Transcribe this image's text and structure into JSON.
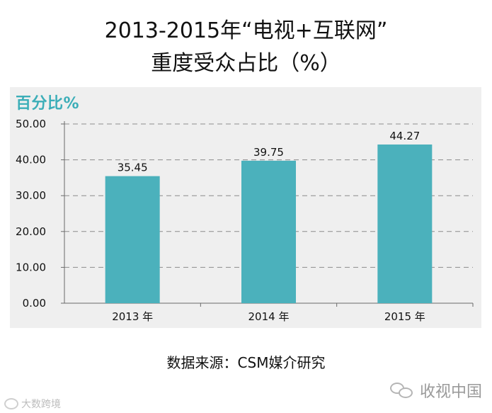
{
  "title": {
    "line1": "2013-2015年“电视+互联网”",
    "line2": "重度受众占比（%）"
  },
  "panel_label": "百分比%",
  "source": "数据来源：CSM媒介研究",
  "watermark_right": "收视中国",
  "watermark_left": "大数跨境",
  "colors": {
    "bar": "#4bb1bc",
    "panel_label": "#3caeb8",
    "panel_bg": "#efefef",
    "grid": "#8c8c8c",
    "axis": "#6a6a6a"
  },
  "chart_data": {
    "type": "bar",
    "categories": [
      "2013 年",
      "2014 年",
      "2015 年"
    ],
    "values": [
      35.45,
      39.75,
      44.27
    ],
    "value_labels": [
      "35.45",
      "39.75",
      "44.27"
    ],
    "yticks": [
      "0.00",
      "10.00",
      "20.00",
      "30.00",
      "40.00",
      "50.00"
    ],
    "ylim": [
      0,
      50
    ],
    "grid": true,
    "grid_style": "dashed",
    "title": "",
    "xlabel": "",
    "ylabel": ""
  }
}
